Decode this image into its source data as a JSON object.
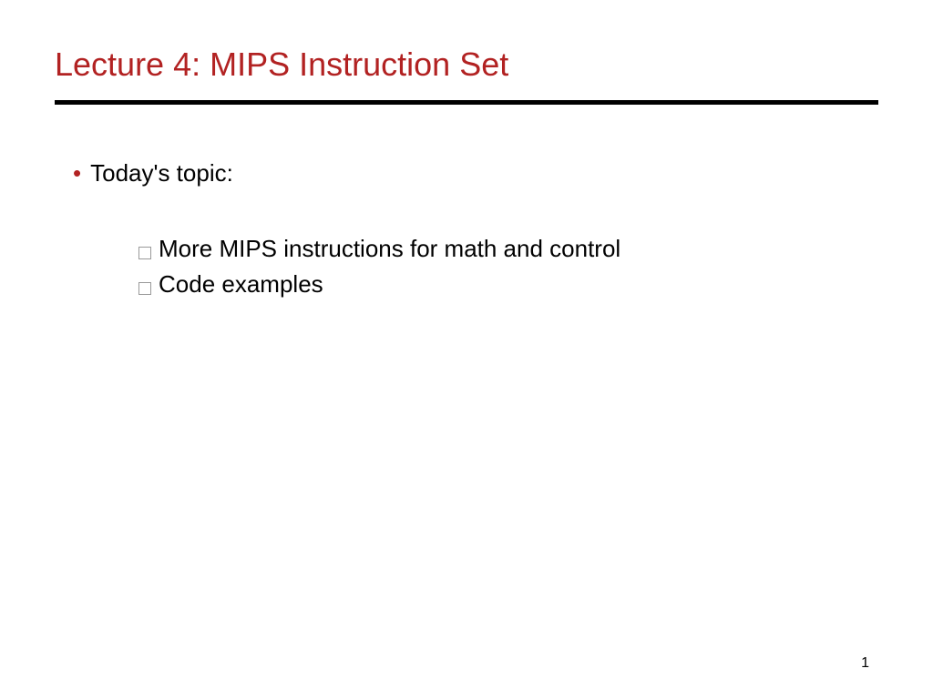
{
  "slide": {
    "title": "Lecture 4: MIPS Instruction Set",
    "title_color": "#b22222",
    "title_fontsize": 36,
    "divider_color": "#000000",
    "divider_height": 5,
    "topic_label": "Today's topic:",
    "bullet_color": "#b22222",
    "body_fontsize": 26,
    "body_color": "#000000",
    "sub_items": [
      "More MIPS instructions for math and control",
      "Code examples"
    ],
    "page_number": "1",
    "page_number_fontsize": 16,
    "background_color": "#ffffff"
  }
}
